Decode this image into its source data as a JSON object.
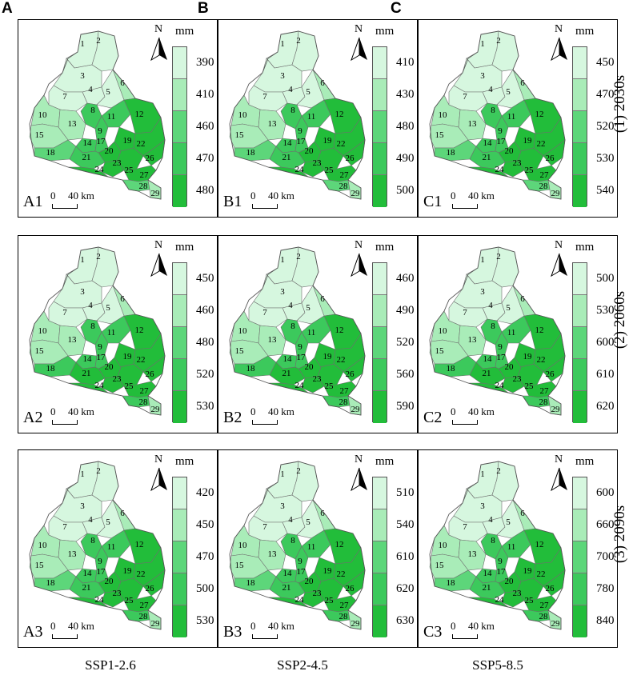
{
  "columns": [
    {
      "letter": "A",
      "scenario": "SSP1-2.6"
    },
    {
      "letter": "B",
      "scenario": "SSP2-4.5"
    },
    {
      "letter": "C",
      "scenario": "SSP5-8.5"
    }
  ],
  "rows": [
    "(1) 2030s",
    "(2) 2060s",
    "(3) 2090s"
  ],
  "unit": "mm",
  "north_label": "N",
  "scale_bar": {
    "zero": "0",
    "distance": "40 km"
  },
  "legend_colors": [
    "#d6f7df",
    "#a9ecb8",
    "#5dd67a",
    "#3cc95c",
    "#22bd3a"
  ],
  "subbasin_ids": [
    "1",
    "2",
    "3",
    "4",
    "5",
    "6",
    "7",
    "8",
    "9",
    "10",
    "11",
    "12",
    "13",
    "14",
    "15",
    "17",
    "18",
    "19",
    "20",
    "21",
    "22",
    "23",
    "24",
    "25",
    "26",
    "27",
    "28",
    "29"
  ],
  "panels": [
    {
      "label": "A1",
      "ticks": [
        "390",
        "410",
        "460",
        "470",
        "480"
      ]
    },
    {
      "label": "B1",
      "ticks": [
        "410",
        "430",
        "480",
        "490",
        "500"
      ]
    },
    {
      "label": "C1",
      "ticks": [
        "450",
        "470",
        "520",
        "530",
        "540"
      ]
    },
    {
      "label": "A2",
      "ticks": [
        "450",
        "460",
        "480",
        "520",
        "530"
      ]
    },
    {
      "label": "B2",
      "ticks": [
        "460",
        "490",
        "520",
        "560",
        "590"
      ]
    },
    {
      "label": "C2",
      "ticks": [
        "500",
        "530",
        "600",
        "610",
        "620"
      ]
    },
    {
      "label": "A3",
      "ticks": [
        "420",
        "450",
        "470",
        "500",
        "530"
      ]
    },
    {
      "label": "B3",
      "ticks": [
        "510",
        "540",
        "610",
        "620",
        "630"
      ]
    },
    {
      "label": "C3",
      "ticks": [
        "600",
        "660",
        "700",
        "780",
        "840"
      ]
    }
  ]
}
